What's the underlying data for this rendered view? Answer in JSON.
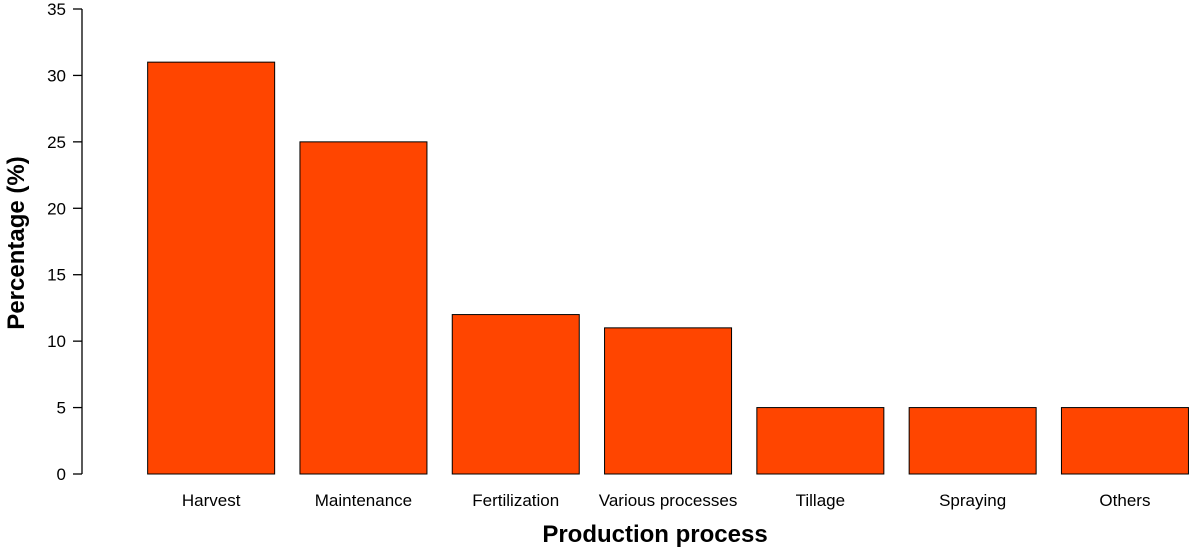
{
  "chart_data": {
    "type": "bar",
    "title": "",
    "xlabel": "Production process",
    "ylabel": "Percentage (%)",
    "categories": [
      "Harvest",
      "Maintenance",
      "Fertilization",
      "Various processes",
      "Tillage",
      "Spraying",
      "Others"
    ],
    "values": [
      31,
      25,
      12,
      11,
      5,
      5,
      5
    ],
    "ylim": [
      0,
      35
    ],
    "yticks": [
      0,
      5,
      10,
      15,
      20,
      25,
      30,
      35
    ],
    "grid": false,
    "legend": "none",
    "bar_color": "#FF4500"
  }
}
